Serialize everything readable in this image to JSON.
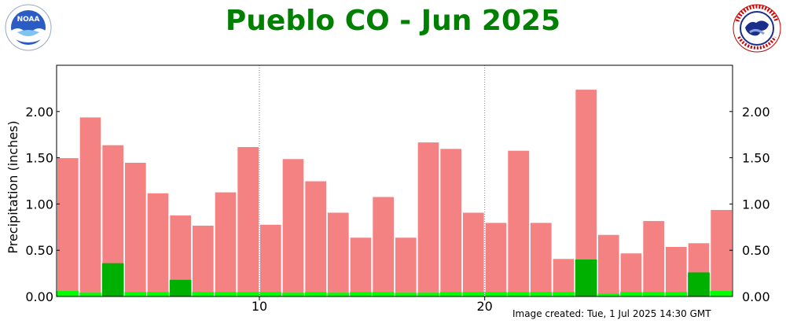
{
  "title": "Pueblo CO - Jun 2025",
  "image_created": "Image created: Tue, 1 Jul 2025 14:30 GMT",
  "colors": {
    "title": "#008000",
    "normal_bar": "#f48282",
    "observed_low": "#00ff00",
    "observed_high": "#00b000",
    "grid": "#808080"
  },
  "icons": [
    "noaa-logo",
    "nws-logo"
  ],
  "chart_data": {
    "type": "bar",
    "ylabel": "Precipitation (inches)",
    "xlabel": "",
    "xlim": [
      1,
      31
    ],
    "ylim": [
      0,
      2.5
    ],
    "yticks": [
      "0.00",
      "0.50",
      "1.00",
      "1.50",
      "2.00"
    ],
    "xticks": [
      "10",
      "20"
    ],
    "grid": true,
    "x": [
      1,
      2,
      3,
      4,
      5,
      6,
      7,
      8,
      9,
      10,
      11,
      12,
      13,
      14,
      15,
      16,
      17,
      18,
      19,
      20,
      21,
      22,
      23,
      24,
      25,
      26,
      27,
      28,
      29,
      30
    ],
    "series": [
      {
        "values": [
          1.5,
          1.94,
          1.64,
          1.45,
          1.12,
          0.88,
          0.77,
          1.13,
          1.62,
          0.78,
          1.49,
          1.25,
          0.91,
          0.64,
          1.08,
          0.64,
          1.67,
          1.6,
          0.91,
          0.8,
          1.58,
          0.8,
          0.41,
          2.24,
          0.67,
          0.47,
          0.82,
          0.54,
          0.58,
          0.94
        ]
      },
      {
        "values": [
          0.06,
          0.04,
          0.36,
          0.05,
          0.05,
          0.18,
          0.05,
          0.05,
          0.05,
          0.05,
          0.04,
          0.05,
          0.04,
          0.05,
          0.05,
          0.04,
          0.04,
          0.05,
          0.05,
          0.05,
          0.05,
          0.05,
          0.05,
          0.4,
          0.03,
          0.05,
          0.05,
          0.05,
          0.26,
          0.06
        ]
      }
    ]
  }
}
